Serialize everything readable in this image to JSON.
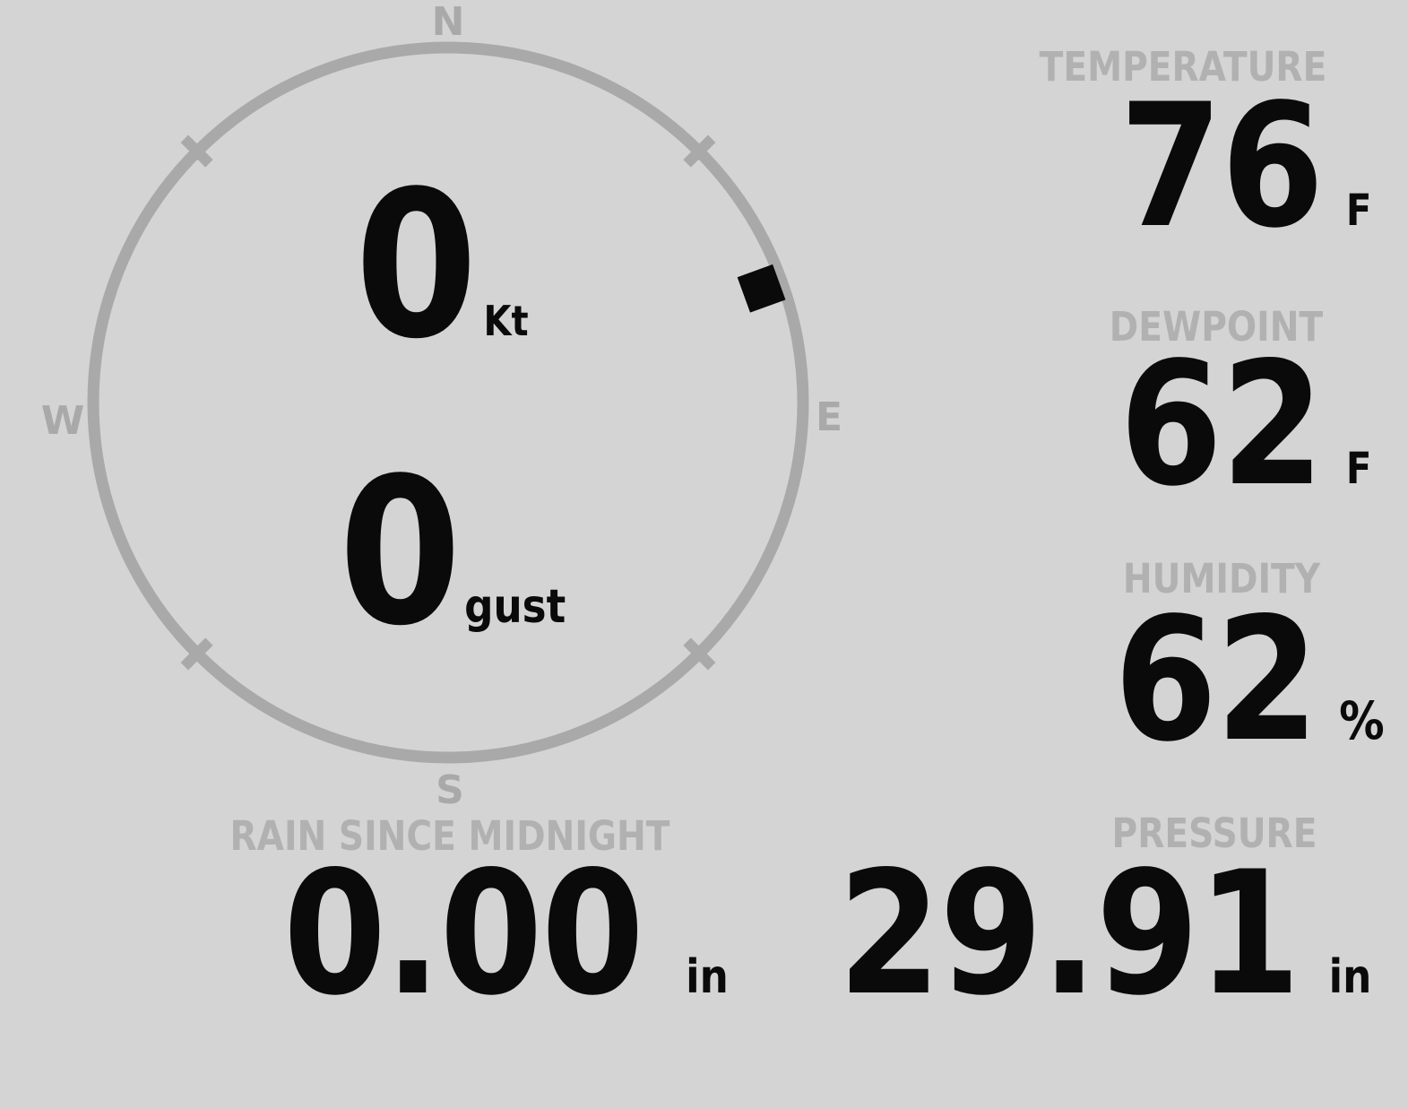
{
  "colors": {
    "background": "#d4d4d4",
    "dial": "#a9a9a9",
    "label_gray": "#b1b1b1",
    "value_black": "#0a0a0a"
  },
  "compass": {
    "cardinal": {
      "north": "N",
      "east": "E",
      "south": "S",
      "west": "W"
    },
    "wind_speed": {
      "value": "0",
      "unit": "Kt"
    },
    "wind_gust": {
      "value": "0",
      "unit": "gust"
    },
    "direction_marker_degrees": 70
  },
  "measurements": {
    "temperature": {
      "label": "TEMPERATURE",
      "value": "76",
      "unit": "F"
    },
    "dewpoint": {
      "label": "DEWPOINT",
      "value": "62",
      "unit": "F"
    },
    "humidity": {
      "label": "HUMIDITY",
      "value": "62",
      "unit": "%"
    },
    "rain_since_midnight": {
      "label": "RAIN SINCE MIDNIGHT",
      "value": "0.00",
      "unit": "in"
    },
    "pressure": {
      "label": "PRESSURE",
      "value": "29.91",
      "unit": "in"
    }
  }
}
